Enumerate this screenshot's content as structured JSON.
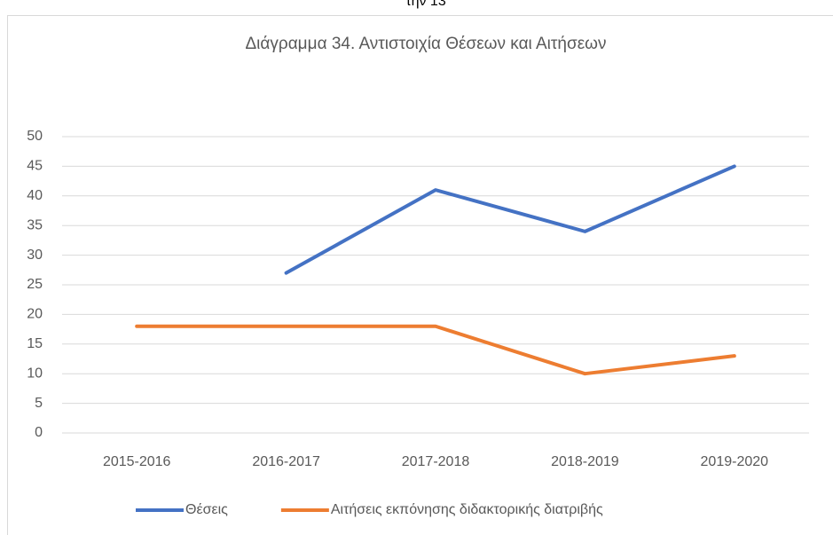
{
  "page_text": "την 13",
  "chart_data": {
    "type": "line",
    "title": "Διάγραμμα 34. Αντιστοιχία Θέσεων και Αιτήσεων",
    "categories": [
      "2015-2016",
      "2016-2017",
      "2017-2018",
      "2018-2019",
      "2019-2020"
    ],
    "series": [
      {
        "name": "Θέσεις",
        "color": "#4472c4",
        "values": [
          null,
          27,
          41,
          34,
          45
        ]
      },
      {
        "name": "Αιτήσεις εκπόνησης διδακτορικής διατριβής",
        "color": "#ed7d31",
        "values": [
          18,
          18,
          18,
          10,
          13
        ]
      }
    ],
    "ylim": [
      0,
      50
    ],
    "yticks": [
      0,
      5,
      10,
      15,
      20,
      25,
      30,
      35,
      40,
      45,
      50
    ],
    "grid": true,
    "legend": "bottom"
  }
}
